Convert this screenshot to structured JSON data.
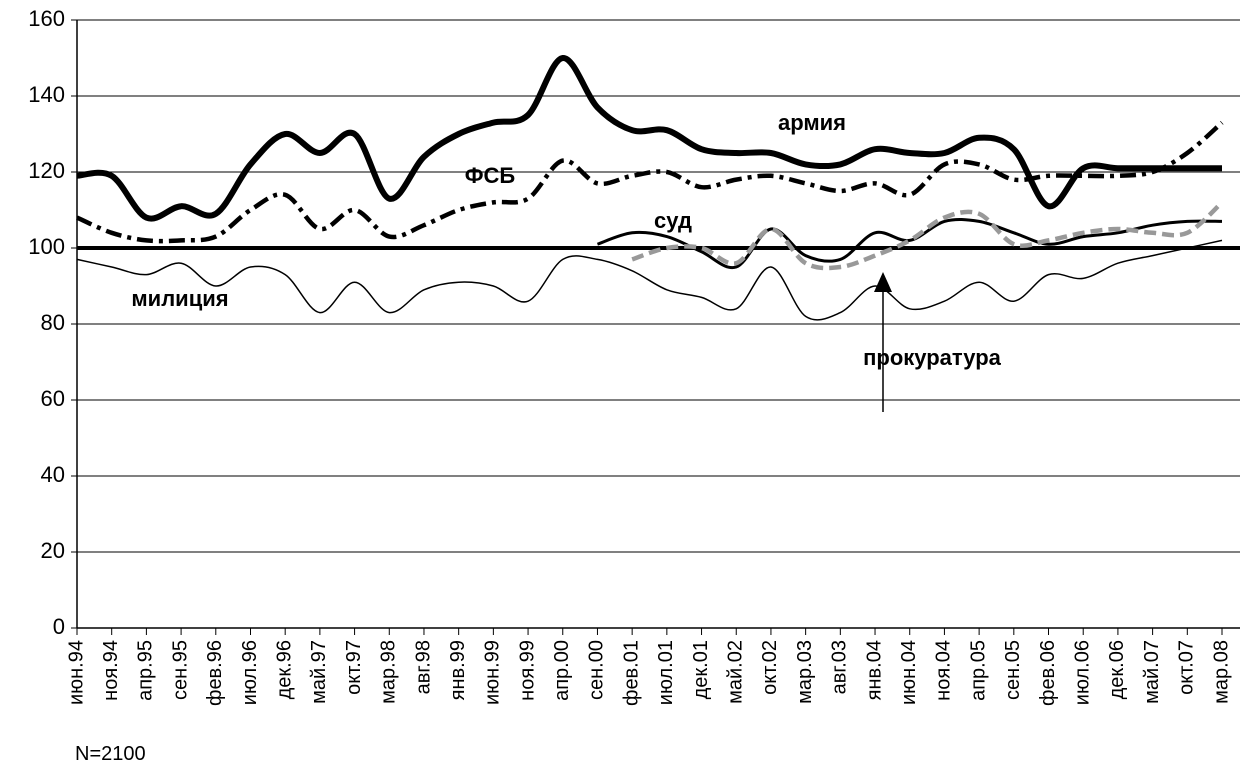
{
  "chart_data": {
    "type": "line",
    "categories": [
      "июн.94",
      "ноя.94",
      "апр.95",
      "сен.95",
      "фев.96",
      "июл.96",
      "дек.96",
      "май.97",
      "окт.97",
      "мар.98",
      "авг.98",
      "янв.99",
      "июн.99",
      "ноя.99",
      "апр.00",
      "сен.00",
      "фев.01",
      "июл.01",
      "дек.01",
      "май.02",
      "окт.02",
      "мар.03",
      "авг.03",
      "янв.04",
      "июн.04",
      "ноя.04",
      "апр.05",
      "сен.05",
      "фев.06",
      "июл.06",
      "дек.06",
      "май.07",
      "окт.07",
      "мар.08"
    ],
    "series": [
      {
        "name": "армия",
        "color": "#000000",
        "values": [
          119,
          119,
          108,
          111,
          109,
          122,
          130,
          125,
          130,
          113,
          124,
          130,
          133,
          135,
          150,
          137,
          131,
          131,
          126,
          125,
          125,
          122,
          122,
          126,
          125,
          125,
          129,
          126,
          111,
          121,
          121,
          121,
          121,
          121
        ]
      },
      {
        "name": "ФСБ",
        "color": "#000000",
        "values": [
          108,
          104,
          102,
          102,
          103,
          110,
          114,
          105,
          110,
          103,
          106,
          110,
          112,
          113,
          123,
          117,
          119,
          120,
          116,
          118,
          119,
          117,
          115,
          117,
          114,
          122,
          122,
          118,
          119,
          119,
          119,
          120,
          125,
          133
        ]
      },
      {
        "name": "суд",
        "color": "#000000",
        "values": [
          null,
          null,
          null,
          null,
          null,
          null,
          null,
          null,
          null,
          null,
          null,
          null,
          null,
          null,
          null,
          101,
          104,
          103,
          99,
          95,
          105,
          98,
          97,
          104,
          102,
          107,
          107,
          104,
          101,
          103,
          104,
          106,
          107,
          107
        ]
      },
      {
        "name": "прокуратура",
        "color": "#999999",
        "values": [
          null,
          null,
          null,
          null,
          null,
          null,
          null,
          null,
          null,
          null,
          null,
          null,
          null,
          null,
          null,
          null,
          97,
          100,
          100,
          96,
          105,
          96,
          95,
          98,
          102,
          108,
          109,
          101,
          102,
          104,
          105,
          104,
          104,
          112
        ]
      },
      {
        "name": "милиция",
        "color": "#000000",
        "values": [
          97,
          95,
          93,
          96,
          90,
          95,
          93,
          83,
          91,
          83,
          89,
          91,
          90,
          86,
          97,
          97,
          94,
          89,
          87,
          84,
          95,
          82,
          83,
          90,
          84,
          86,
          91,
          86,
          93,
          92,
          96,
          98,
          100,
          102
        ]
      }
    ],
    "reference_line": 100,
    "ylim": [
      0,
      160
    ],
    "yticks": [
      0,
      20,
      40,
      60,
      80,
      100,
      120,
      140,
      160
    ],
    "grid": true,
    "note": "N=2100"
  }
}
